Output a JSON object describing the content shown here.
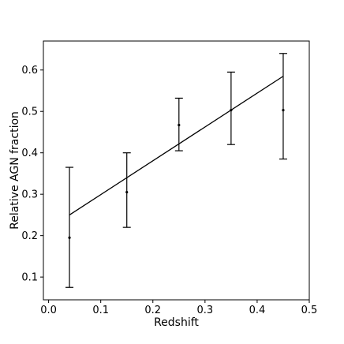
{
  "chart_data": {
    "type": "scatter",
    "title": "",
    "xlabel": "Redshift",
    "ylabel": "Relative AGN fraction",
    "xlim": [
      -0.01,
      0.5
    ],
    "ylim": [
      0.045,
      0.67
    ],
    "xticks": [
      0.0,
      0.1,
      0.2,
      0.3,
      0.4,
      0.5
    ],
    "xtick_labels": [
      "0.0",
      "0.1",
      "0.2",
      "0.3",
      "0.4",
      "0.5"
    ],
    "yticks": [
      0.1,
      0.2,
      0.3,
      0.4,
      0.5,
      0.6
    ],
    "ytick_labels": [
      "0.1",
      "0.2",
      "0.3",
      "0.4",
      "0.5",
      "0.6"
    ],
    "grid": false,
    "colors": {
      "marks": "#000000",
      "frame": "#000000"
    },
    "series": [
      {
        "kind": "points_with_errorbars",
        "points": [
          {
            "x": 0.04,
            "y": 0.195,
            "y_low": 0.075,
            "y_high": 0.365
          },
          {
            "x": 0.15,
            "y": 0.305,
            "y_low": 0.22,
            "y_high": 0.4
          },
          {
            "x": 0.25,
            "y": 0.467,
            "y_low": 0.405,
            "y_high": 0.532
          },
          {
            "x": 0.35,
            "y": 0.503,
            "y_low": 0.42,
            "y_high": 0.595
          },
          {
            "x": 0.45,
            "y": 0.503,
            "y_low": 0.385,
            "y_high": 0.64
          }
        ]
      },
      {
        "kind": "fit_line",
        "x": [
          0.04,
          0.45
        ],
        "y": [
          0.25,
          0.585
        ]
      }
    ]
  }
}
